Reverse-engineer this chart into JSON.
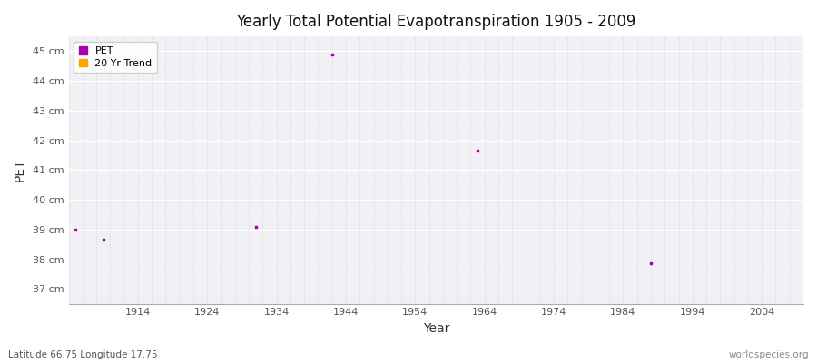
{
  "title": "Yearly Total Potential Evapotranspiration 1905 - 2009",
  "xlabel": "Year",
  "ylabel": "PET",
  "subtitle_left": "Latitude 66.75 Longitude 17.75",
  "subtitle_right": "worldspecies.org",
  "xlim": [
    1904,
    2010
  ],
  "ylim": [
    36.5,
    45.5
  ],
  "yticks": [
    37,
    38,
    39,
    40,
    41,
    42,
    43,
    44,
    45
  ],
  "ytick_labels": [
    "37 cm",
    "38 cm",
    "39 cm",
    "40 cm",
    "41 cm",
    "42 cm",
    "43 cm",
    "44 cm",
    "45 cm"
  ],
  "xticks": [
    1914,
    1924,
    1934,
    1944,
    1954,
    1964,
    1974,
    1984,
    1994,
    2004
  ],
  "pet_x": [
    1905,
    1909,
    1931,
    1942,
    1963,
    1988
  ],
  "pet_y": [
    39.0,
    38.65,
    39.1,
    44.9,
    41.65,
    37.85
  ],
  "pet_color": "#aa00aa",
  "trend_color": "#ffa500",
  "plot_bg_color": "#f0f0f5",
  "fig_bg_color": "#ffffff",
  "grid_h_color": "#ffffff",
  "grid_v_color": "#cccccc",
  "legend_labels": [
    "PET",
    "20 Yr Trend"
  ]
}
